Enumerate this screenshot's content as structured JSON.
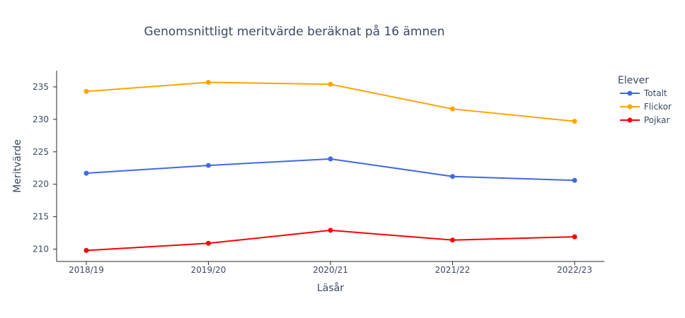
{
  "chart_data": {
    "type": "line",
    "title": "Genomsnittligt meritvärde beräknat på 16 ämnen",
    "xlabel": "Läsår",
    "ylabel": "Meritvärde",
    "categories": [
      "2018/19",
      "2019/20",
      "2020/21",
      "2021/22",
      "2022/23"
    ],
    "yticks": [
      210,
      215,
      220,
      225,
      230,
      235
    ],
    "ylim": [
      208.1,
      237.5
    ],
    "grid": false,
    "legend": {
      "title": "Elever",
      "placement": "top-right"
    },
    "series": [
      {
        "name": "Totalt",
        "color": "#4169e1",
        "values": [
          221.7,
          222.9,
          223.9,
          221.2,
          220.6
        ]
      },
      {
        "name": "Flickor",
        "color": "#ffa500",
        "values": [
          234.3,
          235.7,
          235.4,
          231.6,
          229.7
        ]
      },
      {
        "name": "Pojkar",
        "color": "#ff0000",
        "values": [
          209.8,
          210.9,
          212.9,
          211.4,
          211.9
        ]
      }
    ]
  }
}
